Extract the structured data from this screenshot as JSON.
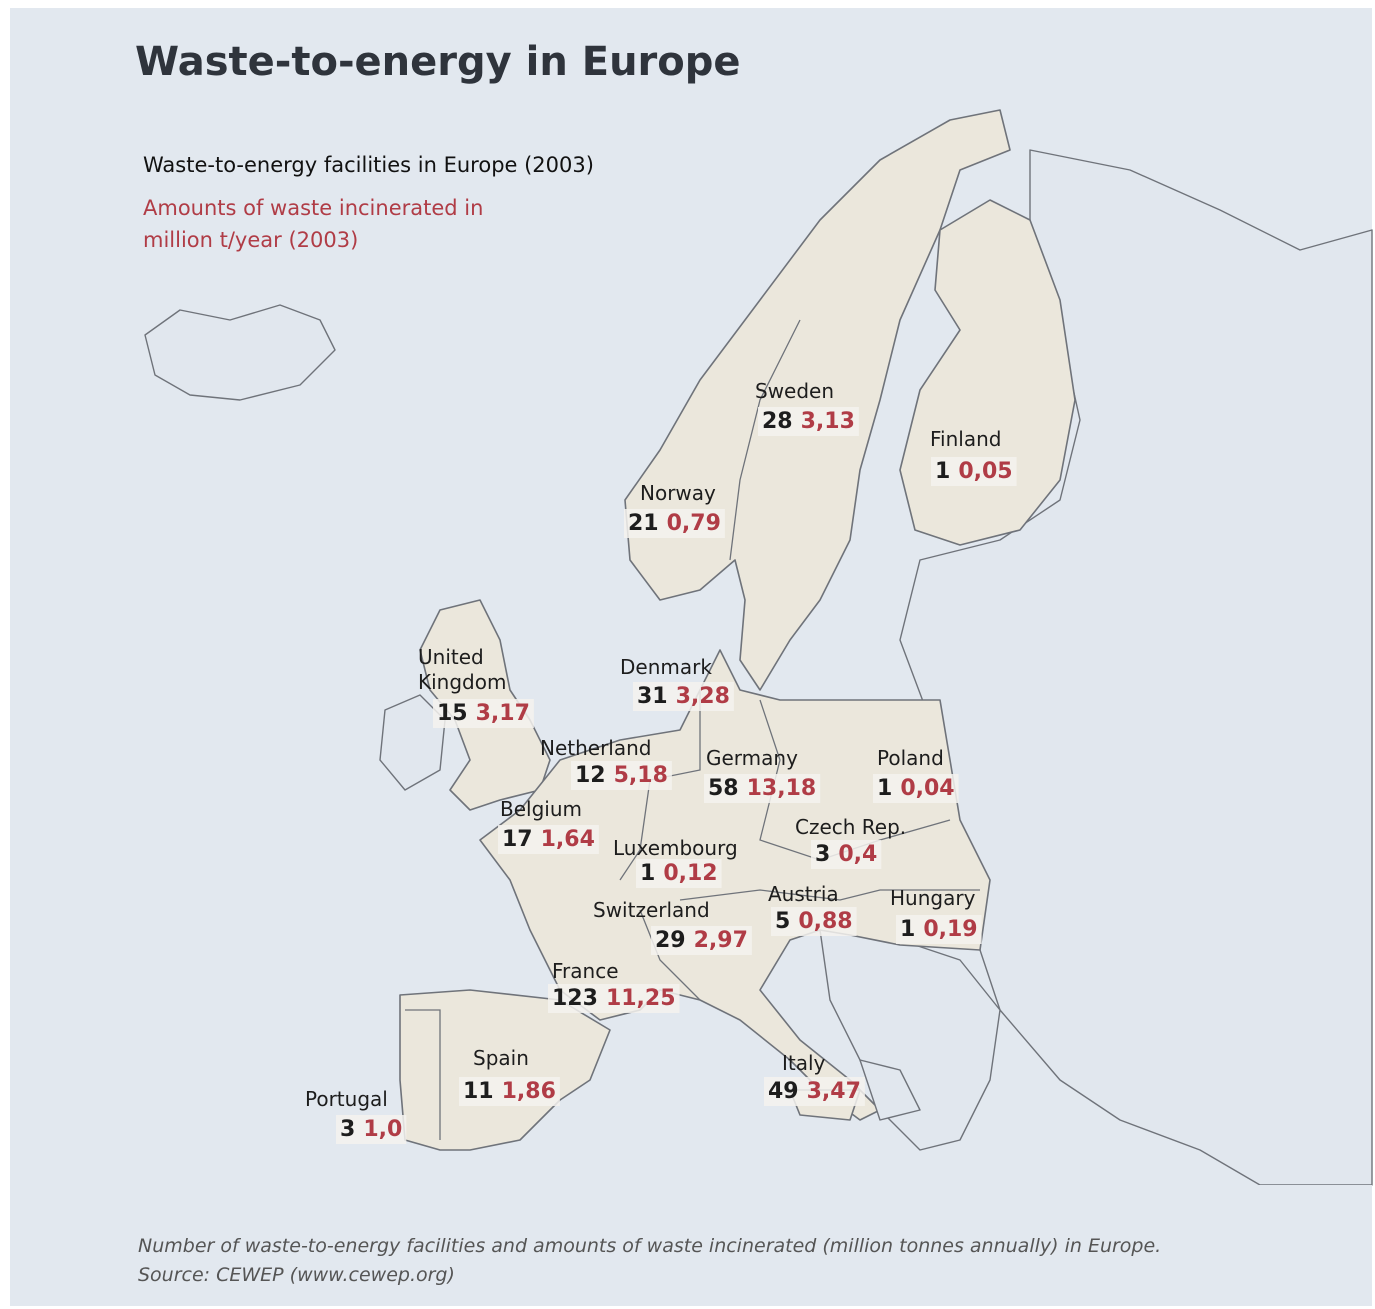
{
  "title": "Waste-to-energy in Europe",
  "legend": {
    "facilities": "Waste-to-energy facilities in Europe (2003)",
    "amounts": [
      "Amounts of waste incinerated in",
      "million t/year (2003)"
    ]
  },
  "countries": [
    {
      "name": [
        "Sweden"
      ],
      "facilities": 28,
      "amount": "3,13"
    },
    {
      "name": [
        "Finland"
      ],
      "facilities": 1,
      "amount": "0,05"
    },
    {
      "name": [
        "Norway"
      ],
      "facilities": 21,
      "amount": "0,79"
    },
    {
      "name": [
        "United",
        "Kingdom"
      ],
      "facilities": 15,
      "amount": "3,17"
    },
    {
      "name": [
        "Denmark"
      ],
      "facilities": 31,
      "amount": "3,28"
    },
    {
      "name": [
        "Netherland"
      ],
      "facilities": 12,
      "amount": "5,18"
    },
    {
      "name": [
        "Germany"
      ],
      "facilities": 58,
      "amount": "13,18"
    },
    {
      "name": [
        "Poland"
      ],
      "facilities": 1,
      "amount": "0,04"
    },
    {
      "name": [
        "Belgium"
      ],
      "facilities": 17,
      "amount": "1,64"
    },
    {
      "name": [
        "Luxembourg"
      ],
      "facilities": 1,
      "amount": "0,12"
    },
    {
      "name": [
        "Czech Rep."
      ],
      "facilities": 3,
      "amount": "0,4"
    },
    {
      "name": [
        "Austria"
      ],
      "facilities": 5,
      "amount": "0,88"
    },
    {
      "name": [
        "Hungary"
      ],
      "facilities": 1,
      "amount": "0,19"
    },
    {
      "name": [
        "Switzerland"
      ],
      "facilities": 29,
      "amount": "2,97"
    },
    {
      "name": [
        "France"
      ],
      "facilities": 123,
      "amount": "11,25"
    },
    {
      "name": [
        "Spain"
      ],
      "facilities": 11,
      "amount": "1,86"
    },
    {
      "name": [
        "Italy"
      ],
      "facilities": 49,
      "amount": "3,47"
    },
    {
      "name": [
        "Portugal"
      ],
      "facilities": 3,
      "amount": "1,0"
    }
  ],
  "caption": [
    "Number of waste-to-energy facilities and amounts of waste incinerated (million tonnes annually) in Europe.",
    "Source: CEWEP (www.cewep.org)"
  ]
}
